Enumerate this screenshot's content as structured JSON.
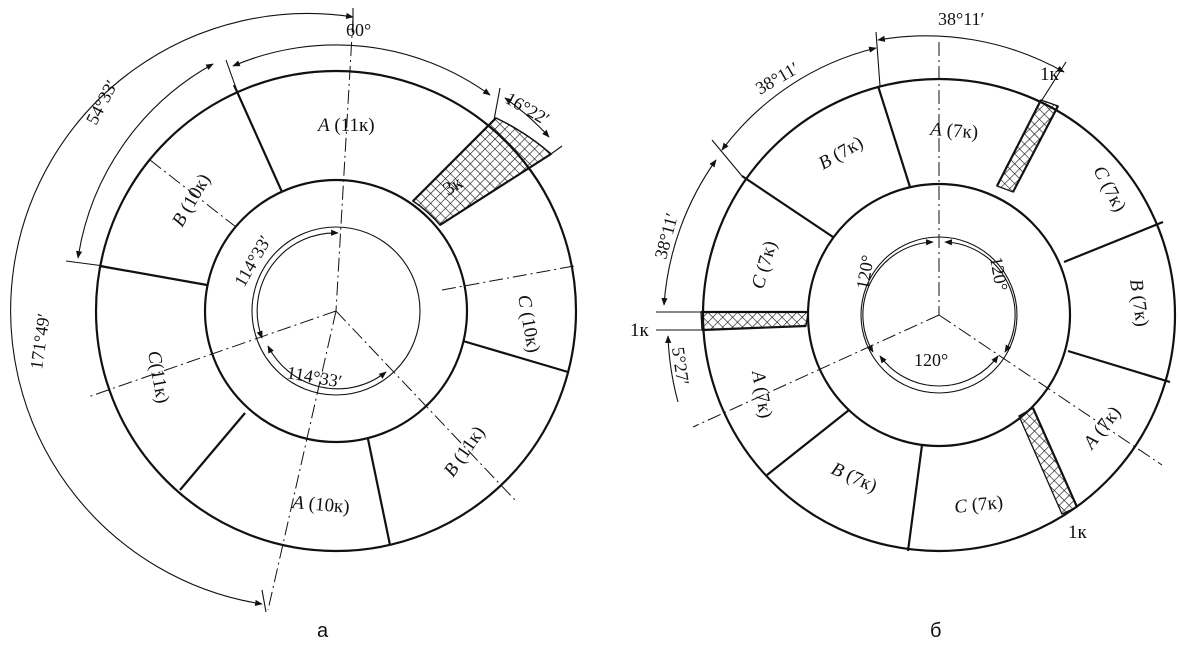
{
  "diagram_a": {
    "caption": "а",
    "sectors": [
      {
        "phase": "A",
        "count": "(11к)"
      },
      {
        "phase": "C",
        "count": "(10к)"
      },
      {
        "phase": "B",
        "count": "(11к)"
      },
      {
        "phase": "A",
        "count": "(10к)"
      },
      {
        "phase": "C",
        "count": "(11к)"
      },
      {
        "phase": "B",
        "count": "(10к)"
      }
    ],
    "hatched_label": "3к",
    "angles": {
      "top": "60°",
      "span_sector": "54°33′",
      "span_hatched": "16°22′",
      "span_outer": "171°49′",
      "inner_upper": "114°33′",
      "inner_lower": "114°33′"
    }
  },
  "diagram_b": {
    "caption": "б",
    "sectors": [
      {
        "phase": "A",
        "count": "(7к)"
      },
      {
        "phase": "C",
        "count": "(7к)"
      },
      {
        "phase": "B",
        "count": "(7к)"
      },
      {
        "phase": "A",
        "count": "(7к)"
      },
      {
        "phase": "C",
        "count": "(7к)"
      },
      {
        "phase": "B",
        "count": "(7к)"
      },
      {
        "phase": "A",
        "count": "(7к)"
      },
      {
        "phase": "C",
        "count": "(7к)"
      },
      {
        "phase": "B",
        "count": "(7к)"
      }
    ],
    "hatched_labels": [
      "1к",
      "1к",
      "1к"
    ],
    "angles": {
      "top": "38°11′",
      "upper_left": "38°11′",
      "left": "38°11′",
      "small": "5°27′",
      "inner_right": "120°",
      "inner_left": "120°",
      "inner_bottom": "120°"
    }
  }
}
